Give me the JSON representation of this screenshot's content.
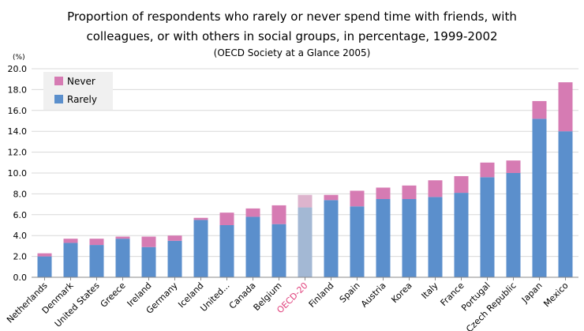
{
  "header": {
    "title_line1": "Proportion of respondents who rarely or never spend time with friends, with",
    "title_line2": "colleagues, or with others in social groups, in percentage, 1999-2002",
    "subtitle": "(OECD Society at a Glance 2005)"
  },
  "chart_data": {
    "type": "bar",
    "stacked": true,
    "title": "Proportion of respondents who rarely or never spend time with friends, with colleagues, or with others in social groups, in percentage, 1999-2002",
    "subtitle": "(OECD Society at a Glance 2005)",
    "ylabel": "(%)",
    "xlabel": "",
    "ylim": [
      0,
      20
    ],
    "yticks": [
      "0.0",
      "2.0",
      "4.0",
      "6.0",
      "8.0",
      "10.0",
      "12.0",
      "14.0",
      "16.0",
      "18.0",
      "20.0"
    ],
    "grid": true,
    "legend_position": "top-left",
    "categories": [
      "Netherlands",
      "Denmark",
      "United States",
      "Greece",
      "Ireland",
      "Germany",
      "Iceland",
      "United...",
      "Canada",
      "Belgium",
      "OECD-20",
      "Finland",
      "Spain",
      "Austria",
      "Korea",
      "Italy",
      "France",
      "Portugal",
      "Czech Republic",
      "Japan",
      "Mexico"
    ],
    "highlight_category": "OECD-20",
    "series": [
      {
        "name": "Rarely",
        "color": "#5b8fcc",
        "highlight_color": "#a3b8d4",
        "values": [
          2.0,
          3.3,
          3.1,
          3.7,
          2.9,
          3.5,
          5.5,
          5.0,
          5.8,
          5.1,
          6.7,
          7.4,
          6.8,
          7.5,
          7.5,
          7.7,
          8.1,
          9.6,
          10.0,
          15.2,
          14.0
        ]
      },
      {
        "name": "Never",
        "color": "#d67bb3",
        "highlight_color": "#ddb4cd",
        "values": [
          0.3,
          0.4,
          0.6,
          0.2,
          1.0,
          0.5,
          0.2,
          1.2,
          0.8,
          1.8,
          1.2,
          0.5,
          1.5,
          1.1,
          1.3,
          1.6,
          1.6,
          1.4,
          1.2,
          1.7,
          4.7
        ]
      }
    ],
    "colors": {
      "axis_label": "#000000",
      "highlight_label": "#e0427d",
      "gridline": "#d8d8d8",
      "legend_bg": "#f0f0f0"
    }
  }
}
